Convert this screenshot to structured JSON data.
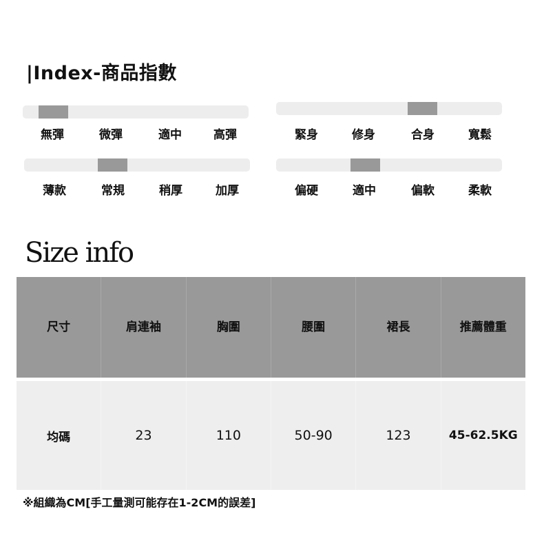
{
  "title": "|Index-商品指數",
  "indices": [
    {
      "name": "elasticity",
      "options": [
        "無彈",
        "微彈",
        "適中",
        "高彈"
      ],
      "level": 0.08
    },
    {
      "name": "fit",
      "options": [
        "緊身",
        "修身",
        "合身",
        "寬鬆"
      ],
      "level": 0.67
    },
    {
      "name": "thickness",
      "options": [
        "薄款",
        "常規",
        "稍厚",
        "加厚"
      ],
      "level": 0.375
    },
    {
      "name": "softness",
      "options": [
        "偏硬",
        "適中",
        "偏軟",
        "柔軟"
      ],
      "level": 0.38
    }
  ],
  "size_title": "Size info",
  "table": {
    "headers": [
      "尺寸",
      "肩連袖",
      "胸圍",
      "腰圍",
      "裙長",
      "推薦體重"
    ],
    "rows": [
      [
        "均碼",
        "23",
        "110",
        "50-90",
        "123",
        "45-62.5KG"
      ]
    ]
  },
  "note": "※組織為CM[手工量測可能存在1-2CM的誤差]",
  "colors": {
    "track": "#ededed",
    "thumb": "#999999",
    "header_bg": "#999999",
    "body_bg": "#eeeeee"
  }
}
